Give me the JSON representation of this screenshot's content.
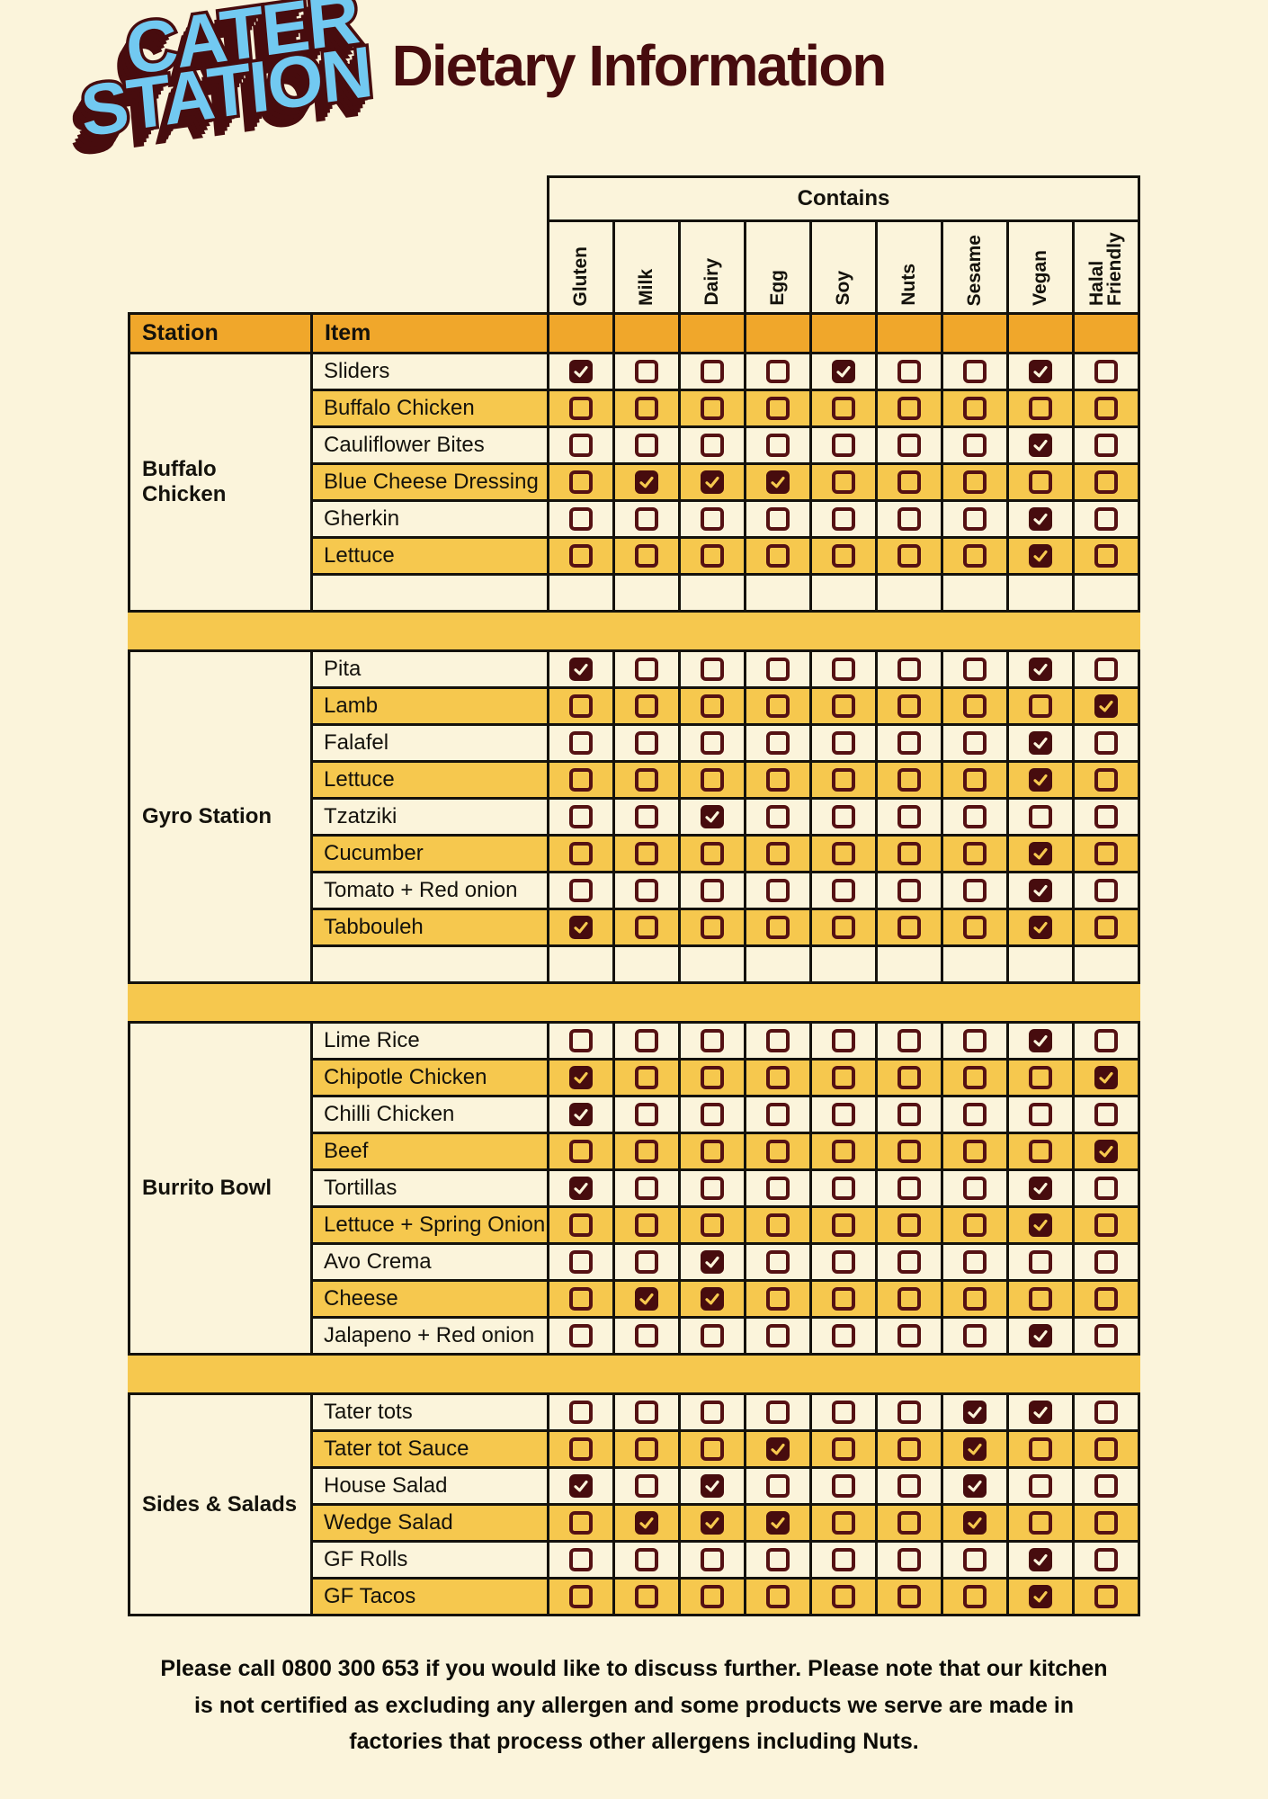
{
  "logo": {
    "line1": "CATER",
    "line2": "STATION"
  },
  "title": "Dietary Information",
  "table": {
    "contains_label": "Contains",
    "station_header": "Station",
    "item_header": "Item",
    "columns": [
      "Gluten",
      "Milk",
      "Dairy",
      "Egg",
      "Soy",
      "Nuts",
      "Sesame",
      "Vegan",
      "Halal Friendly"
    ],
    "sections": [
      {
        "station": "Buffalo Chicken",
        "empty_row": true,
        "items": [
          {
            "name": "Sliders",
            "contains": [
              "Gluten",
              "Soy",
              "Vegan"
            ]
          },
          {
            "name": "Buffalo Chicken",
            "contains": []
          },
          {
            "name": "Cauliflower Bites",
            "contains": [
              "Vegan"
            ]
          },
          {
            "name": "Blue Cheese Dressing",
            "contains": [
              "Milk",
              "Dairy",
              "Egg"
            ]
          },
          {
            "name": "Gherkin",
            "contains": [
              "Vegan"
            ]
          },
          {
            "name": "Lettuce",
            "contains": [
              "Vegan"
            ]
          }
        ]
      },
      {
        "station": "Gyro Station",
        "empty_row": true,
        "items": [
          {
            "name": "Pita",
            "contains": [
              "Gluten",
              "Vegan"
            ]
          },
          {
            "name": "Lamb",
            "contains": [
              "Halal Friendly"
            ]
          },
          {
            "name": "Falafel",
            "contains": [
              "Vegan"
            ]
          },
          {
            "name": "Lettuce",
            "contains": [
              "Vegan"
            ]
          },
          {
            "name": "Tzatziki",
            "contains": [
              "Dairy"
            ]
          },
          {
            "name": "Cucumber",
            "contains": [
              "Vegan"
            ]
          },
          {
            "name": "Tomato + Red onion",
            "contains": [
              "Vegan"
            ]
          },
          {
            "name": "Tabbouleh",
            "contains": [
              "Gluten",
              "Vegan"
            ]
          }
        ]
      },
      {
        "station": "Burrito Bowl",
        "empty_row": false,
        "items": [
          {
            "name": "Lime Rice",
            "contains": [
              "Vegan"
            ]
          },
          {
            "name": "Chipotle Chicken",
            "contains": [
              "Gluten",
              "Halal Friendly"
            ]
          },
          {
            "name": "Chilli Chicken",
            "contains": [
              "Gluten"
            ]
          },
          {
            "name": "Beef",
            "contains": [
              "Halal Friendly"
            ]
          },
          {
            "name": "Tortillas",
            "contains": [
              "Gluten",
              "Vegan"
            ]
          },
          {
            "name": "Lettuce + Spring Onion",
            "contains": [
              "Vegan"
            ]
          },
          {
            "name": "Avo Crema",
            "contains": [
              "Dairy"
            ]
          },
          {
            "name": "Cheese",
            "contains": [
              "Milk",
              "Dairy"
            ]
          },
          {
            "name": "Jalapeno + Red onion",
            "contains": [
              "Vegan"
            ]
          }
        ]
      },
      {
        "station": "Sides & Salads",
        "empty_row": false,
        "items": [
          {
            "name": "Tater tots",
            "contains": [
              "Sesame",
              "Vegan"
            ]
          },
          {
            "name": "Tater tot Sauce",
            "contains": [
              "Egg",
              "Sesame"
            ]
          },
          {
            "name": "House Salad",
            "contains": [
              "Gluten",
              "Dairy",
              "Sesame"
            ]
          },
          {
            "name": "Wedge Salad",
            "contains": [
              "Milk",
              "Dairy",
              "Egg",
              "Sesame"
            ]
          },
          {
            "name": "GF Rolls",
            "contains": [
              "Vegan"
            ]
          },
          {
            "name": "GF Tacos",
            "contains": [
              "Vegan"
            ]
          }
        ]
      }
    ]
  },
  "footer": {
    "lines": [
      "Please call 0800 300 653 if you would like to discuss further. Please note that our kitchen",
      "is not certified as excluding any allergen and some products we serve are made in",
      "factories that process other allergens including Nuts."
    ]
  },
  "colors": {
    "cream": "#FBF4DB",
    "row-yellow": "#F6C84E",
    "header-orange": "#F0A72B",
    "maroon": "#470C0E",
    "checkbox-maroon": "#551113",
    "line-black": "#14120C",
    "logo-blue": "#72C9F1"
  }
}
